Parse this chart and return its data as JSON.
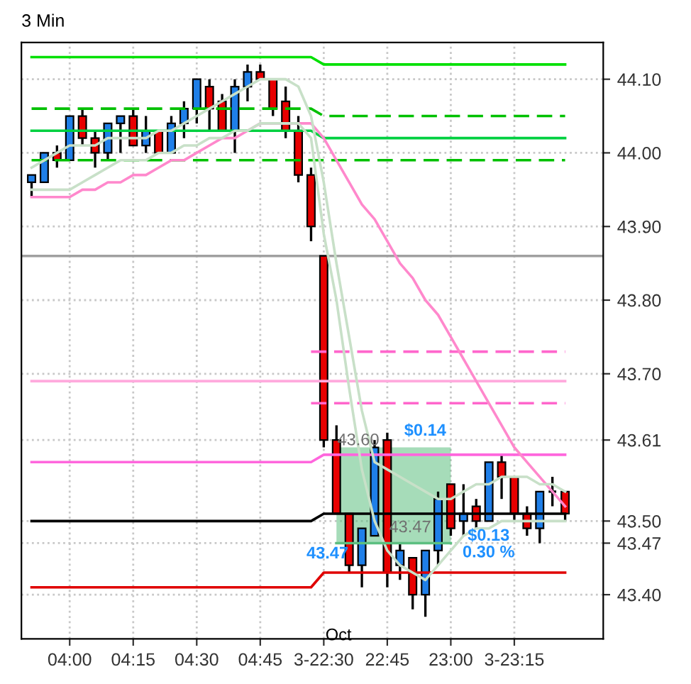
{
  "chart_data": {
    "type": "candlestick",
    "title": "3 Min",
    "categories": [
      null,
      null,
      null,
      "04:00",
      null,
      null,
      null,
      null,
      "04:15",
      null,
      null,
      null,
      null,
      "04:30",
      null,
      null,
      null,
      null,
      "04:45",
      null,
      null,
      null,
      null,
      "3-22:30",
      null,
      null,
      null,
      null,
      "22:45",
      null,
      null,
      null,
      null,
      "23:00",
      null,
      null,
      null,
      null,
      "3-23:15",
      null,
      null,
      null,
      null
    ],
    "ohlc": [
      [
        43.96,
        43.97,
        43.94,
        43.97
      ],
      [
        43.96,
        44.0,
        43.96,
        44.0
      ],
      [
        44.0,
        44.01,
        43.98,
        43.99
      ],
      [
        43.99,
        44.05,
        43.99,
        44.05
      ],
      [
        44.05,
        44.06,
        44.01,
        44.02
      ],
      [
        44.02,
        44.03,
        43.98,
        44.0
      ],
      [
        44.0,
        44.04,
        43.99,
        44.04
      ],
      [
        44.04,
        44.05,
        44.0,
        44.05
      ],
      [
        44.05,
        44.06,
        44.01,
        44.01
      ],
      [
        44.01,
        44.05,
        44.0,
        44.03
      ],
      [
        44.03,
        44.03,
        44.0,
        44.0
      ],
      [
        44.0,
        44.05,
        44.0,
        44.04
      ],
      [
        44.04,
        44.07,
        44.02,
        44.06
      ],
      [
        44.06,
        44.1,
        44.04,
        44.1
      ],
      [
        44.09,
        44.1,
        44.03,
        44.06
      ],
      [
        44.07,
        44.08,
        44.03,
        44.03
      ],
      [
        44.03,
        44.1,
        44.0,
        44.09
      ],
      [
        44.09,
        44.12,
        44.07,
        44.11
      ],
      [
        44.11,
        44.12,
        44.1,
        44.1
      ],
      [
        44.1,
        44.1,
        44.05,
        44.06
      ],
      [
        44.07,
        44.09,
        44.02,
        44.03
      ],
      [
        44.03,
        44.05,
        43.96,
        43.97
      ],
      [
        43.97,
        43.98,
        43.88,
        43.9
      ],
      [
        43.86,
        43.86,
        43.6,
        43.61
      ],
      [
        43.61,
        43.63,
        43.51,
        43.51
      ],
      [
        43.51,
        43.51,
        43.43,
        43.44
      ],
      [
        43.44,
        43.49,
        43.41,
        43.49
      ],
      [
        43.48,
        43.61,
        43.48,
        43.6
      ],
      [
        43.61,
        43.62,
        43.41,
        43.43
      ],
      [
        43.44,
        43.47,
        43.42,
        43.46
      ],
      [
        43.45,
        43.45,
        43.38,
        43.4
      ],
      [
        43.4,
        43.46,
        43.37,
        43.46
      ],
      [
        43.46,
        43.54,
        43.44,
        43.53
      ],
      [
        43.55,
        43.55,
        43.48,
        43.49
      ],
      [
        43.5,
        43.55,
        43.48,
        43.51
      ],
      [
        43.52,
        43.53,
        43.49,
        43.5
      ],
      [
        43.5,
        43.58,
        43.5,
        43.58
      ],
      [
        43.58,
        43.59,
        43.53,
        43.56
      ],
      [
        43.56,
        43.56,
        43.5,
        43.51
      ],
      [
        43.51,
        43.52,
        43.48,
        43.49
      ],
      [
        43.49,
        43.54,
        43.47,
        43.54
      ],
      [
        43.54,
        43.56,
        43.52,
        43.54
      ],
      [
        43.54,
        43.54,
        43.5,
        43.51
      ]
    ],
    "colors": [
      "#1f7fe8",
      "#1f7fe8",
      "#e80000",
      "#1f7fe8",
      "#e80000",
      "#e80000",
      "#1f7fe8",
      "#1f7fe8",
      "#e80000",
      "#1f7fe8",
      "#e80000",
      "#1f7fe8",
      "#1f7fe8",
      "#1f7fe8",
      "#e80000",
      "#e80000",
      "#1f7fe8",
      "#1f7fe8",
      "#e80000",
      "#e80000",
      "#e80000",
      "#e80000",
      "#e80000",
      "#e80000",
      "#e80000",
      "#e80000",
      "#1f7fe8",
      "#1f7fe8",
      "#e80000",
      "#1f7fe8",
      "#e80000",
      "#1f7fe8",
      "#1f7fe8",
      "#e80000",
      "#1f7fe8",
      "#e80000",
      "#1f7fe8",
      "#e80000",
      "#e80000",
      "#e80000",
      "#1f7fe8",
      "#000000",
      "#e80000"
    ],
    "series": [
      {
        "type": "line",
        "color": "#00e000",
        "line_style": "solid",
        "values": [
          44.13,
          44.13,
          44.13,
          44.13,
          44.13,
          44.13,
          44.13,
          44.13,
          44.13,
          44.13,
          44.13,
          44.13,
          44.13,
          44.13,
          44.13,
          44.13,
          44.13,
          44.13,
          44.13,
          44.13,
          44.13,
          44.13,
          44.13,
          44.12,
          44.12,
          44.12,
          44.12,
          44.12,
          44.12,
          44.12,
          44.12,
          44.12,
          44.12,
          44.12,
          44.12,
          44.12,
          44.12,
          44.12,
          44.12,
          44.12,
          44.12,
          44.12,
          44.12
        ]
      },
      {
        "type": "line",
        "color": "#00c000",
        "line_style": "dashed",
        "values": [
          44.06,
          44.06,
          44.06,
          44.06,
          44.06,
          44.06,
          44.06,
          44.06,
          44.06,
          44.06,
          44.06,
          44.06,
          44.06,
          44.06,
          44.06,
          44.06,
          44.06,
          44.06,
          44.06,
          44.06,
          44.06,
          44.06,
          44.06,
          44.05,
          44.05,
          44.05,
          44.05,
          44.05,
          44.05,
          44.05,
          44.05,
          44.05,
          44.05,
          44.05,
          44.05,
          44.05,
          44.05,
          44.05,
          44.05,
          44.05,
          44.05,
          44.05,
          44.05
        ]
      },
      {
        "type": "line",
        "color": "#00d040",
        "line_style": "solid",
        "values": [
          44.03,
          44.03,
          44.03,
          44.03,
          44.03,
          44.03,
          44.03,
          44.03,
          44.03,
          44.03,
          44.03,
          44.03,
          44.03,
          44.03,
          44.03,
          44.03,
          44.03,
          44.03,
          44.03,
          44.03,
          44.03,
          44.03,
          44.03,
          44.02,
          44.02,
          44.02,
          44.02,
          44.02,
          44.02,
          44.02,
          44.02,
          44.02,
          44.02,
          44.02,
          44.02,
          44.02,
          44.02,
          44.02,
          44.02,
          44.02,
          44.02,
          44.02,
          44.02
        ]
      },
      {
        "type": "line",
        "color": "#00c000",
        "line_style": "dashed",
        "values": [
          43.99,
          43.99,
          43.99,
          43.99,
          43.99,
          43.99,
          43.99,
          43.99,
          43.99,
          43.99,
          43.99,
          43.99,
          43.99,
          43.99,
          43.99,
          43.99,
          43.99,
          43.99,
          43.99,
          43.99,
          43.99,
          43.99,
          43.99,
          43.99,
          43.99,
          43.99,
          43.99,
          43.99,
          43.99,
          43.99,
          43.99,
          43.99,
          43.99,
          43.99,
          43.99,
          43.99,
          43.99,
          43.99,
          43.99,
          43.99,
          43.99,
          43.99,
          43.99
        ]
      },
      {
        "type": "line",
        "color": "#ff66cc",
        "line_style": "dashed",
        "values": [
          null,
          null,
          null,
          null,
          null,
          null,
          null,
          null,
          null,
          null,
          null,
          null,
          null,
          null,
          null,
          null,
          null,
          null,
          null,
          null,
          null,
          null,
          43.73,
          43.73,
          43.73,
          43.73,
          43.73,
          43.73,
          43.73,
          43.73,
          43.73,
          43.73,
          43.73,
          43.73,
          43.73,
          43.73,
          43.73,
          43.73,
          43.73,
          43.73,
          43.73,
          43.73,
          43.73
        ]
      },
      {
        "type": "line",
        "color": "#ffaadd",
        "line_style": "solid",
        "values": [
          43.69,
          43.69,
          43.69,
          43.69,
          43.69,
          43.69,
          43.69,
          43.69,
          43.69,
          43.69,
          43.69,
          43.69,
          43.69,
          43.69,
          43.69,
          43.69,
          43.69,
          43.69,
          43.69,
          43.69,
          43.69,
          43.69,
          43.69,
          43.69,
          43.69,
          43.69,
          43.69,
          43.69,
          43.69,
          43.69,
          43.69,
          43.69,
          43.69,
          43.69,
          43.69,
          43.69,
          43.69,
          43.69,
          43.69,
          43.69,
          43.69,
          43.69,
          43.69
        ]
      },
      {
        "type": "line",
        "color": "#ff66cc",
        "line_style": "dashed",
        "values": [
          null,
          null,
          null,
          null,
          null,
          null,
          null,
          null,
          null,
          null,
          null,
          null,
          null,
          null,
          null,
          null,
          null,
          null,
          null,
          null,
          null,
          null,
          43.66,
          43.66,
          43.66,
          43.66,
          43.66,
          43.66,
          43.66,
          43.66,
          43.66,
          43.66,
          43.66,
          43.66,
          43.66,
          43.66,
          43.66,
          43.66,
          43.66,
          43.66,
          43.66,
          43.66,
          43.66
        ]
      },
      {
        "type": "line",
        "color": "#ff66dd",
        "line_style": "solid",
        "values": [
          43.58,
          43.58,
          43.58,
          43.58,
          43.58,
          43.58,
          43.58,
          43.58,
          43.58,
          43.58,
          43.58,
          43.58,
          43.58,
          43.58,
          43.58,
          43.58,
          43.58,
          43.58,
          43.58,
          43.58,
          43.58,
          43.58,
          43.58,
          43.59,
          43.59,
          43.59,
          43.59,
          43.59,
          43.59,
          43.59,
          43.59,
          43.59,
          43.59,
          43.59,
          43.59,
          43.59,
          43.59,
          43.59,
          43.59,
          43.59,
          43.59,
          43.59,
          43.59
        ]
      },
      {
        "type": "line",
        "color": "#000000",
        "line_style": "solid",
        "values": [
          43.5,
          43.5,
          43.5,
          43.5,
          43.5,
          43.5,
          43.5,
          43.5,
          43.5,
          43.5,
          43.5,
          43.5,
          43.5,
          43.5,
          43.5,
          43.5,
          43.5,
          43.5,
          43.5,
          43.5,
          43.5,
          43.5,
          43.5,
          43.51,
          43.51,
          43.51,
          43.51,
          43.51,
          43.51,
          43.51,
          43.51,
          43.51,
          43.51,
          43.51,
          43.51,
          43.51,
          43.51,
          43.51,
          43.51,
          43.51,
          43.51,
          43.51,
          43.51
        ]
      },
      {
        "type": "line",
        "color": "#e00000",
        "line_style": "solid",
        "values": [
          43.41,
          43.41,
          43.41,
          43.41,
          43.41,
          43.41,
          43.41,
          43.41,
          43.41,
          43.41,
          43.41,
          43.41,
          43.41,
          43.41,
          43.41,
          43.41,
          43.41,
          43.41,
          43.41,
          43.41,
          43.41,
          43.41,
          43.41,
          43.43,
          43.43,
          43.43,
          43.43,
          43.43,
          43.43,
          43.43,
          43.43,
          43.43,
          43.43,
          43.43,
          43.43,
          43.43,
          43.43,
          43.43,
          43.43,
          43.43,
          43.43,
          43.43,
          43.43
        ]
      },
      {
        "type": "line",
        "color": "#ff88cc",
        "line_style": "solid",
        "values": [
          43.94,
          43.94,
          43.94,
          43.94,
          43.95,
          43.95,
          43.96,
          43.96,
          43.97,
          43.97,
          43.98,
          43.99,
          43.99,
          44.0,
          44.01,
          44.02,
          44.02,
          44.03,
          44.04,
          44.04,
          44.04,
          44.04,
          44.04,
          44.02,
          43.99,
          43.96,
          43.93,
          43.91,
          43.88,
          43.85,
          43.83,
          43.8,
          43.78,
          43.75,
          43.72,
          43.69,
          43.66,
          43.63,
          43.6,
          43.58,
          43.56,
          43.54,
          43.52
        ]
      },
      {
        "type": "line",
        "color": "#c8e0c8",
        "line_style": "solid",
        "values": [
          43.98,
          43.99,
          44.0,
          44.01,
          44.01,
          44.01,
          44.02,
          44.02,
          44.02,
          44.02,
          44.03,
          44.03,
          44.04,
          44.05,
          44.06,
          44.07,
          44.08,
          44.09,
          44.1,
          44.1,
          44.1,
          44.09,
          44.05,
          43.96,
          43.85,
          43.75,
          43.65,
          43.58,
          43.57,
          43.56,
          43.55,
          43.54,
          43.53,
          43.53,
          43.54,
          43.55,
          43.55,
          43.56,
          43.56,
          43.56,
          43.55,
          43.55,
          43.54
        ]
      },
      {
        "type": "line",
        "color": "#c8e0c8",
        "line_style": "solid",
        "values": [
          43.95,
          43.95,
          43.95,
          43.95,
          43.96,
          43.97,
          43.98,
          43.99,
          43.99,
          43.99,
          44.0,
          44.0,
          44.01,
          44.01,
          44.02,
          44.02,
          44.03,
          44.03,
          44.04,
          44.04,
          44.04,
          44.04,
          44.02,
          43.89,
          43.8,
          43.68,
          43.57,
          43.5,
          43.46,
          43.44,
          43.43,
          43.42,
          43.44,
          43.46,
          43.48,
          43.49,
          43.49,
          43.5,
          43.5,
          43.5,
          43.5,
          43.5,
          43.5
        ]
      },
      {
        "type": "line",
        "color": "#5cbf80",
        "line_style": "solid",
        "values": [
          null,
          null,
          null,
          null,
          null,
          null,
          null,
          null,
          null,
          null,
          null,
          null,
          null,
          null,
          null,
          null,
          null,
          null,
          null,
          null,
          null,
          null,
          null,
          null,
          43.47,
          43.47,
          43.47,
          43.47,
          43.47,
          43.47,
          43.47,
          43.47,
          43.47,
          43.47,
          null,
          null,
          null,
          null,
          null,
          null,
          null,
          null,
          null
        ],
        "lower": [
          null,
          null,
          null,
          null,
          null,
          null,
          null,
          null,
          null,
          null,
          null,
          null,
          null,
          null,
          null,
          null,
          null,
          null,
          null,
          null,
          null,
          null,
          null,
          null,
          43.47,
          43.47,
          43.47,
          43.47,
          43.47,
          43.47,
          43.47,
          43.47,
          43.47,
          43.47,
          null,
          null,
          null,
          null,
          null,
          null,
          null,
          null,
          null
        ],
        "upper": [
          null,
          null,
          null,
          null,
          null,
          null,
          null,
          null,
          null,
          null,
          null,
          null,
          null,
          null,
          null,
          null,
          null,
          null,
          null,
          null,
          null,
          null,
          null,
          null,
          43.6,
          43.6,
          43.6,
          43.6,
          43.6,
          43.6,
          43.6,
          43.6,
          43.6,
          43.6,
          null,
          null,
          null,
          null,
          null,
          null,
          null,
          null,
          null
        ]
      }
    ],
    "ref_lines": [
      {
        "axis": "y",
        "value": 43.86,
        "color": "#a0a0a0"
      }
    ],
    "ylim": [
      43.34,
      44.15
    ],
    "yticks": [
      {
        "value": 43.4,
        "label": "43.40"
      },
      {
        "value": 43.47,
        "label": "43.47"
      },
      {
        "value": 43.5,
        "label": "43.50"
      },
      {
        "value": 43.61,
        "label": "43.61"
      },
      {
        "value": 43.7,
        "label": "43.70"
      },
      {
        "value": 43.8,
        "label": "43.80"
      },
      {
        "value": 43.9,
        "label": "43.90"
      },
      {
        "value": 44.0,
        "label": "44.00"
      },
      {
        "value": 44.1,
        "label": "44.10"
      }
    ],
    "grid": true,
    "annotations": [
      "43.60",
      "$0.14",
      "43.47",
      "43.47",
      "$0.13",
      "0.30 %",
      "Oct"
    ]
  }
}
